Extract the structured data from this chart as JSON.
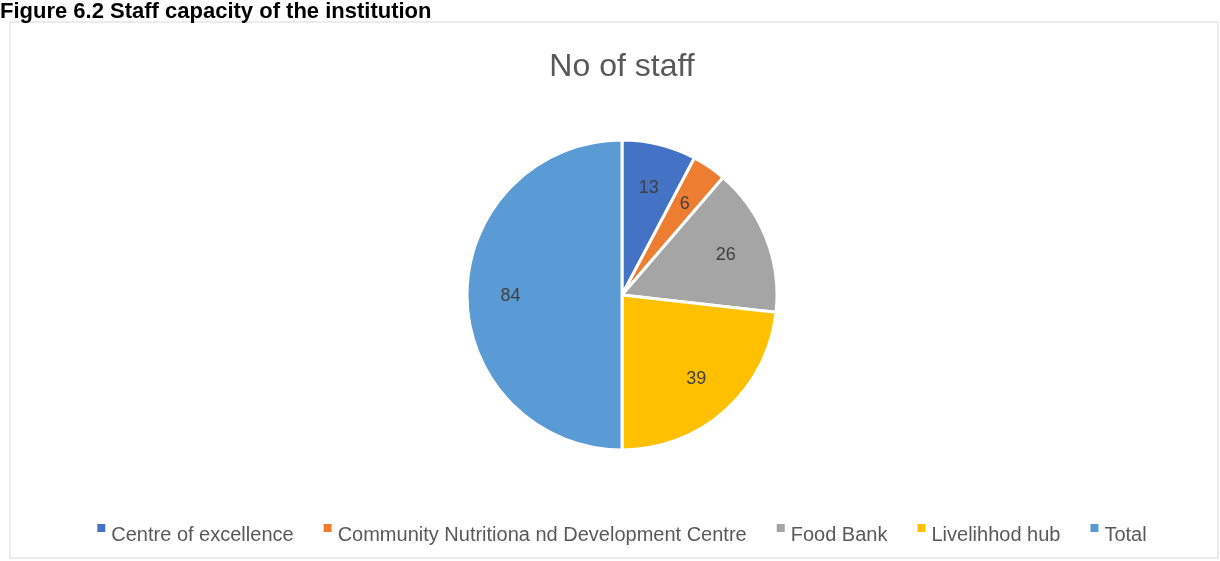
{
  "chart_data": {
    "type": "pie",
    "title": "No of staff",
    "categories": [
      "Centre of excellence",
      "Community Nutritiona nd Development Centre",
      "Food Bank",
      "Livelihhod hub",
      "Total"
    ],
    "values": [
      13,
      6,
      26,
      39,
      84
    ],
    "colors": [
      "#4472c4",
      "#ed7d31",
      "#a5a5a5",
      "#ffc000",
      "#5b9bd5"
    ],
    "data_labels": true,
    "legend": "bottom",
    "annotations": [
      "Figure 6.2 Staff capacity of the institution"
    ]
  }
}
